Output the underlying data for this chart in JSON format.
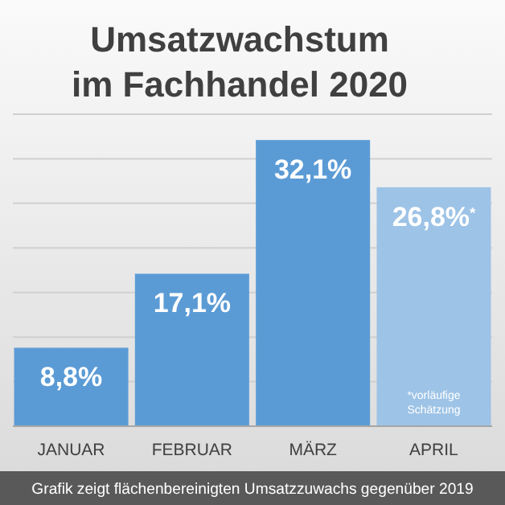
{
  "chart_data": {
    "type": "bar",
    "title": "Umsatzwachstum\nim Fachhandel 2020",
    "categories": [
      "JANUAR",
      "FEBRUAR",
      "MÄRZ",
      "APRIL"
    ],
    "values": [
      8.8,
      17.1,
      32.1,
      26.8
    ],
    "colors": [
      "#5b9bd5",
      "#5b9bd5",
      "#5b9bd5",
      "#9dc3e6"
    ],
    "value_labels": [
      "8,8%",
      "17,1%",
      "32,1%",
      "26,8%$^{*}$"
    ],
    "ylim": [
      0,
      35
    ],
    "yticks": [
      {
        "value": 0,
        "label": null
      },
      {
        "value": 5,
        "label": null
      },
      {
        "value": 10,
        "label": null
      },
      {
        "value": 15,
        "label": null
      },
      {
        "value": 20,
        "label": null
      },
      {
        "value": 25,
        "label": null
      },
      {
        "value": 30,
        "label": null
      },
      {
        "value": 35,
        "label": null
      }
    ],
    "grid": "y",
    "annotations": [
      "*vorläufige Schätzung",
      "Grafik zeigt flächenbereinigten Umsatzzuwachs gegenüber 2019"
    ]
  }
}
